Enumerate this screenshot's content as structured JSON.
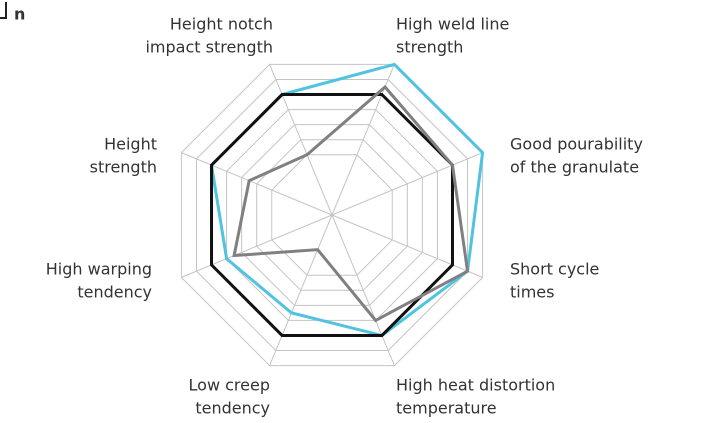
{
  "chart_data": {
    "type": "radar",
    "title": "n",
    "categories": [
      [
        "High weld line",
        "strength"
      ],
      [
        "Good pourability",
        "of the granulate"
      ],
      [
        "Short cycle",
        "times"
      ],
      [
        "High heat distortion",
        "temperature"
      ],
      [
        "Low creep",
        "tendency"
      ],
      [
        "High warping",
        "tendency"
      ],
      [
        "Height",
        "strength"
      ],
      [
        "Height notch",
        "impact strength"
      ]
    ],
    "rlim": [
      0,
      10
    ],
    "rticks": [
      4,
      5,
      6,
      7,
      8,
      9,
      10
    ],
    "grid": true,
    "series": [
      {
        "color": "#4fc3df",
        "values": [
          10,
          10,
          9,
          8,
          6.5,
          7,
          8,
          8
        ]
      },
      {
        "color": "#111111",
        "values": [
          8,
          8,
          8,
          8,
          8,
          8,
          8,
          8
        ]
      },
      {
        "color": "#808080",
        "values": [
          8.5,
          8,
          9,
          7,
          2.3,
          6.5,
          5.5,
          4
        ]
      }
    ]
  }
}
